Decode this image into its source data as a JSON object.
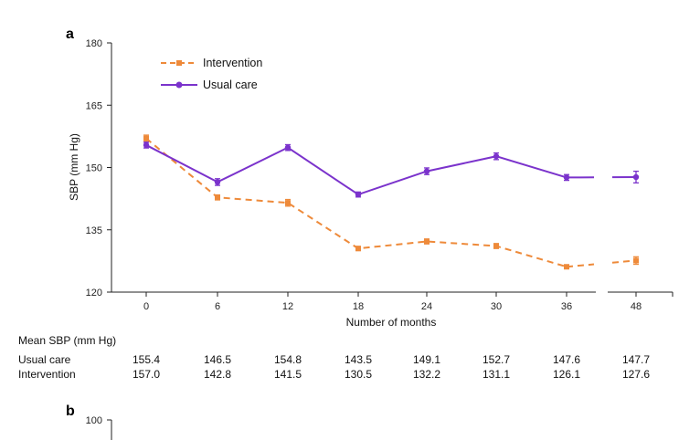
{
  "panels": {
    "a": "a",
    "b": "b"
  },
  "chart_data": {
    "type": "line",
    "xlabel": "Number of months",
    "ylabel": "SBP (mm Hg)",
    "ylim": [
      120,
      180
    ],
    "yticks": [
      "120",
      "135",
      "150",
      "165",
      "180"
    ],
    "categories": [
      "0",
      "6",
      "12",
      "18",
      "24",
      "30",
      "36",
      "48"
    ],
    "grid": false,
    "legend_position": "top-left",
    "series": [
      {
        "name": "Intervention",
        "style": "dashed",
        "color": "#ee8a3a",
        "values": [
          157.0,
          142.8,
          141.5,
          130.5,
          132.2,
          131.1,
          126.1,
          127.6
        ],
        "error": [
          0.8,
          0.6,
          0.8,
          0.5,
          0.6,
          0.6,
          0.4,
          0.9
        ]
      },
      {
        "name": "Usual care",
        "style": "solid",
        "color": "#7b33cc",
        "values": [
          155.4,
          146.5,
          154.8,
          143.5,
          149.1,
          152.7,
          147.6,
          147.7
        ],
        "error": [
          0.7,
          0.8,
          0.7,
          0.6,
          0.8,
          0.8,
          0.7,
          1.4
        ]
      }
    ],
    "table": {
      "header": "Mean SBP (mm Hg)",
      "rows": [
        {
          "label": "Usual care",
          "values": [
            "155.4",
            "146.5",
            "154.8",
            "143.5",
            "149.1",
            "152.7",
            "147.6",
            "147.7"
          ]
        },
        {
          "label": "Intervention",
          "values": [
            "157.0",
            "142.8",
            "141.5",
            "130.5",
            "132.2",
            "131.1",
            "126.1",
            "127.6"
          ]
        }
      ]
    },
    "panel_b_partial": {
      "ytick_top": "100"
    }
  }
}
